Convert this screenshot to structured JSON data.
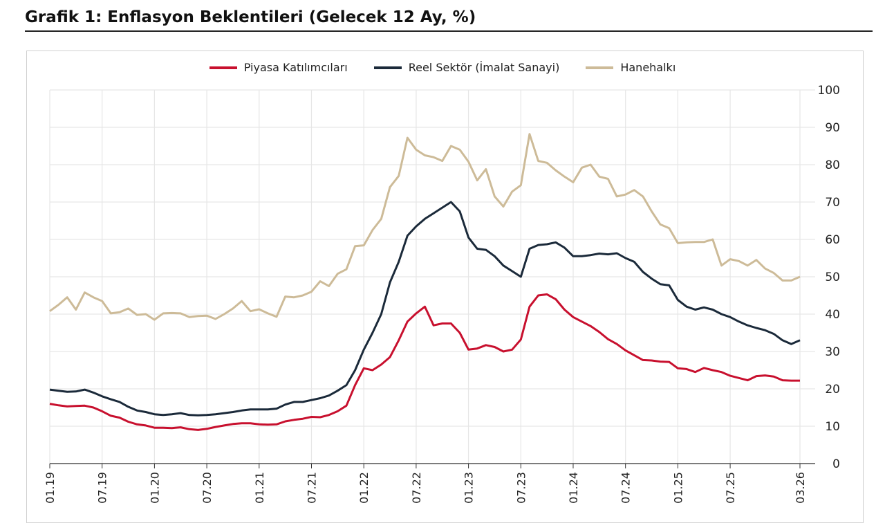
{
  "chart_data": {
    "type": "line",
    "title": "Grafik 1: Enflasyon Beklentileri (Gelecek 12 Ay, %)",
    "xlabel": "",
    "ylabel": "",
    "ylim": [
      0,
      100
    ],
    "yticks": [
      "0",
      "10",
      "20",
      "30",
      "40",
      "50",
      "60",
      "70",
      "80",
      "90",
      "100"
    ],
    "xticks": [
      "01.19",
      "07.19",
      "01.20",
      "07.20",
      "01.21",
      "07.21",
      "01.22",
      "07.22",
      "01.23",
      "07.23",
      "01.24",
      "07.24",
      "01.25",
      "07.25",
      "03.26"
    ],
    "grid": true,
    "legend_position": "top",
    "x": [
      "01.19",
      "02.19",
      "03.19",
      "04.19",
      "05.19",
      "06.19",
      "07.19",
      "08.19",
      "09.19",
      "10.19",
      "11.19",
      "12.19",
      "01.20",
      "02.20",
      "03.20",
      "04.20",
      "05.20",
      "06.20",
      "07.20",
      "08.20",
      "09.20",
      "10.20",
      "11.20",
      "12.20",
      "01.21",
      "02.21",
      "03.21",
      "04.21",
      "05.21",
      "06.21",
      "07.21",
      "08.21",
      "09.21",
      "10.21",
      "11.21",
      "12.21",
      "01.22",
      "02.22",
      "03.22",
      "04.22",
      "05.22",
      "06.22",
      "07.22",
      "08.22",
      "09.22",
      "10.22",
      "11.22",
      "12.22",
      "01.23",
      "02.23",
      "03.23",
      "04.23",
      "05.23",
      "06.23",
      "07.23",
      "08.23",
      "09.23",
      "10.23",
      "11.23",
      "12.23",
      "01.24",
      "02.24",
      "03.24",
      "04.24",
      "05.24",
      "06.24",
      "07.24",
      "08.24",
      "09.24",
      "10.24",
      "11.24",
      "12.24",
      "01.25",
      "02.25",
      "03.25",
      "04.25",
      "05.25",
      "06.25",
      "07.25",
      "08.25",
      "09.25",
      "10.25",
      "11.25",
      "12.25",
      "01.26",
      "02.26",
      "03.26"
    ],
    "series": [
      {
        "name": "Piyasa Katılımcıları",
        "color": "#c8102e",
        "values": [
          16.0,
          15.6,
          15.3,
          15.4,
          15.5,
          15.0,
          14.0,
          12.8,
          12.3,
          11.2,
          10.5,
          10.2,
          9.6,
          9.6,
          9.5,
          9.7,
          9.2,
          9.0,
          9.3,
          9.8,
          10.2,
          10.6,
          10.8,
          10.8,
          10.5,
          10.4,
          10.5,
          11.3,
          11.7,
          12.0,
          12.5,
          12.4,
          13.0,
          14.0,
          15.5,
          21.0,
          25.5,
          25.0,
          26.5,
          28.5,
          33.0,
          38.0,
          40.2,
          42.0,
          37.0,
          37.5,
          37.5,
          35.0,
          30.5,
          30.8,
          31.7,
          31.2,
          30.0,
          30.5,
          33.2,
          42.0,
          45.0,
          45.3,
          44.0,
          41.2,
          39.2,
          38.0,
          36.8,
          35.2,
          33.3,
          32.0,
          30.3,
          29.0,
          27.7,
          27.6,
          27.3,
          27.2,
          25.5,
          25.3,
          24.5,
          25.6,
          25.0,
          24.5,
          23.5,
          22.9,
          22.3,
          23.4,
          23.6,
          23.3,
          22.3,
          22.2,
          22.2
        ]
      },
      {
        "name": "Reel Sektör (İmalat Sanayi)",
        "color": "#1b2a3a",
        "values": [
          19.8,
          19.5,
          19.2,
          19.3,
          19.8,
          19.0,
          18.0,
          17.2,
          16.5,
          15.2,
          14.2,
          13.8,
          13.2,
          13.0,
          13.2,
          13.5,
          13.0,
          12.9,
          13.0,
          13.2,
          13.5,
          13.8,
          14.2,
          14.5,
          14.5,
          14.5,
          14.7,
          15.8,
          16.5,
          16.5,
          17.0,
          17.5,
          18.2,
          19.5,
          21.0,
          25.0,
          30.5,
          35.0,
          40.0,
          48.5,
          54.0,
          61.0,
          63.5,
          65.5,
          67.0,
          68.5,
          70.0,
          67.5,
          60.5,
          57.5,
          57.2,
          55.5,
          53.0,
          51.5,
          50.0,
          57.5,
          58.5,
          58.7,
          59.2,
          57.8,
          55.5,
          55.5,
          55.8,
          56.2,
          56.0,
          56.3,
          55.0,
          54.0,
          51.3,
          49.5,
          48.0,
          47.7,
          43.8,
          42.0,
          41.2,
          41.8,
          41.2,
          40.0,
          39.2,
          38.0,
          37.0,
          36.3,
          35.7,
          34.7,
          33.0,
          32.0,
          33.0
        ]
      },
      {
        "name": "Hanehalkı",
        "color": "#cdbb98",
        "values": [
          40.8,
          42.5,
          44.5,
          41.2,
          45.8,
          44.5,
          43.5,
          40.2,
          40.5,
          41.5,
          39.8,
          40.0,
          38.5,
          40.2,
          40.3,
          40.2,
          39.2,
          39.5,
          39.6,
          38.7,
          40.0,
          41.5,
          43.5,
          40.8,
          41.3,
          40.2,
          39.3,
          44.7,
          44.5,
          45.0,
          46.0,
          48.8,
          47.5,
          50.8,
          52.0,
          58.2,
          58.4,
          62.5,
          65.5,
          74.0,
          77.0,
          87.2,
          84.0,
          82.5,
          82.0,
          81.0,
          85.0,
          84.0,
          80.8,
          75.8,
          78.8,
          71.5,
          68.8,
          72.8,
          74.5,
          88.2,
          81.0,
          80.5,
          78.5,
          76.8,
          75.3,
          79.2,
          80.0,
          76.8,
          76.2,
          71.5,
          72.0,
          73.2,
          71.5,
          67.5,
          64.0,
          63.0,
          59.0,
          59.2,
          59.3,
          59.3,
          60.0,
          53.0,
          54.7,
          54.2,
          53.0,
          54.5,
          52.2,
          51.0,
          49.0,
          49.0,
          50.0
        ]
      }
    ]
  }
}
